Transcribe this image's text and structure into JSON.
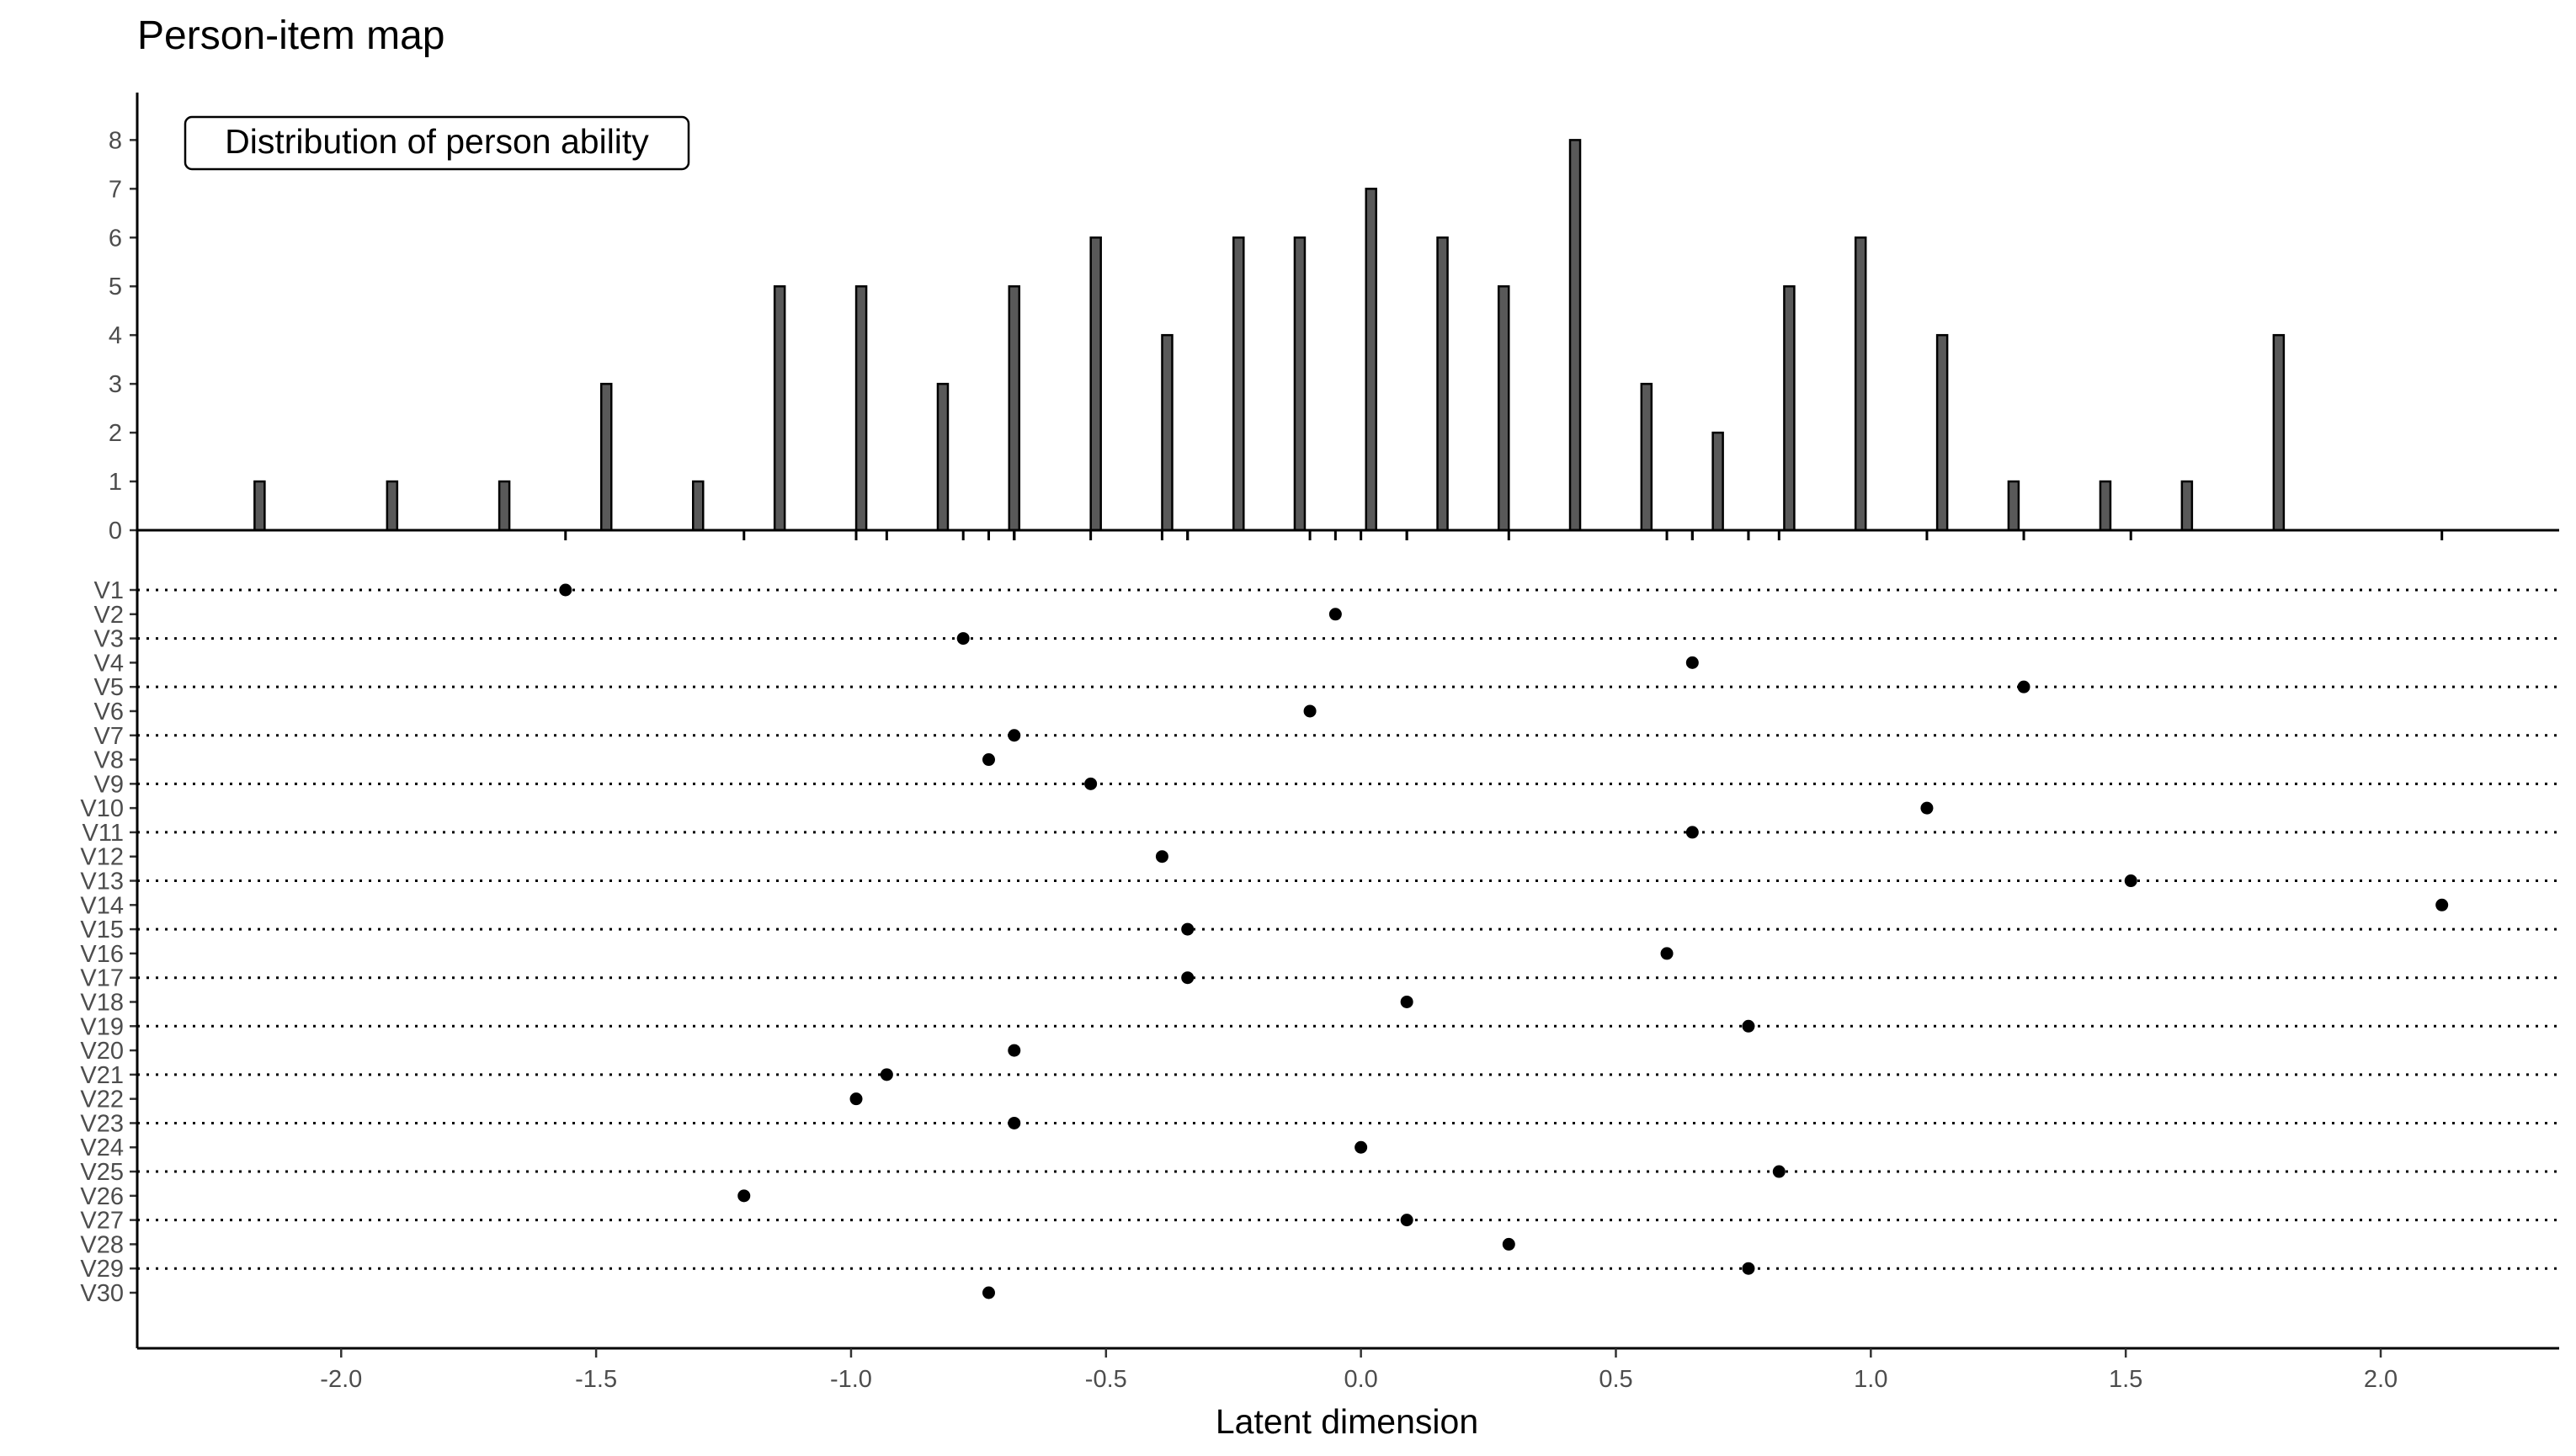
{
  "chart_data": {
    "type": "person-item-map",
    "title": "Person-item map",
    "legend_label": "Distribution of person ability",
    "xlabel": "Latent dimension",
    "xlim": [
      -2.4,
      2.35
    ],
    "x_ticks": [
      "-2.0",
      "-1.5",
      "-1.0",
      "-0.5",
      "0.0",
      "0.5",
      "1.0",
      "1.5",
      "2.0"
    ],
    "x_tick_values": [
      -2.0,
      -1.5,
      -1.0,
      -0.5,
      0.0,
      0.5,
      1.0,
      1.5,
      2.0
    ],
    "histogram": {
      "ylim": [
        0,
        8.8
      ],
      "y_ticks": [
        "0",
        "1",
        "2",
        "3",
        "4",
        "5",
        "6",
        "7",
        "8"
      ],
      "y_tick_values": [
        0,
        1,
        2,
        3,
        4,
        5,
        6,
        7,
        8
      ],
      "x": [
        -2.16,
        -1.9,
        -1.68,
        -1.48,
        -1.3,
        -1.14,
        -0.98,
        -0.82,
        -0.68,
        -0.52,
        -0.38,
        -0.24,
        -0.12,
        0.02,
        0.16,
        0.28,
        0.42,
        0.56,
        0.7,
        0.84,
        0.98,
        1.14,
        1.28,
        1.46,
        1.62,
        1.8
      ],
      "counts": [
        1,
        1,
        1,
        3,
        1,
        5,
        5,
        3,
        5,
        6,
        4,
        6,
        6,
        7,
        6,
        5,
        8,
        3,
        2,
        5,
        6,
        4,
        1,
        1,
        1,
        4
      ]
    },
    "items": {
      "labels": [
        "V1",
        "V2",
        "V3",
        "V4",
        "V5",
        "V6",
        "V7",
        "V8",
        "V9",
        "V10",
        "V11",
        "V12",
        "V13",
        "V14",
        "V15",
        "V16",
        "V17",
        "V18",
        "V19",
        "V20",
        "V21",
        "V22",
        "V23",
        "V24",
        "V25",
        "V26",
        "V27",
        "V28",
        "V29",
        "V30"
      ],
      "difficulty": [
        -1.56,
        -0.05,
        -0.78,
        0.65,
        1.3,
        -0.1,
        -0.68,
        -0.73,
        -0.53,
        1.11,
        0.65,
        -0.39,
        1.51,
        2.12,
        -0.34,
        0.6,
        -0.34,
        0.09,
        0.76,
        -0.68,
        -0.93,
        -0.99,
        -0.68,
        0.0,
        0.82,
        -1.21,
        0.09,
        0.29,
        0.76,
        -0.73
      ]
    },
    "grid": false
  }
}
